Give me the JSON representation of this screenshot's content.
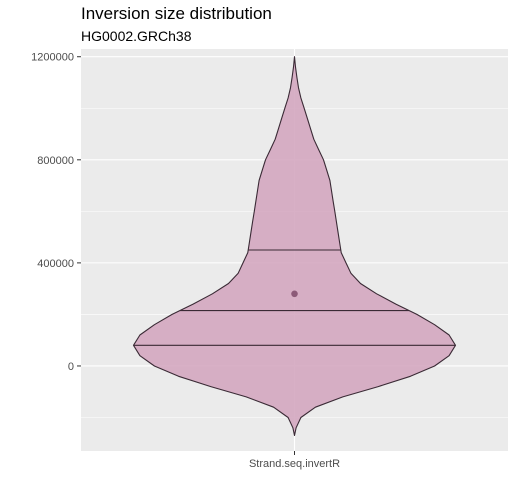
{
  "chart_data": {
    "type": "violin",
    "title": "Inversion size distribution",
    "subtitle": "HG0002.GRCh38",
    "xlabel": "",
    "ylabel": "",
    "categories": [
      "Strand.seq.invertR"
    ],
    "ylim": [
      -330000,
      1230000
    ],
    "y_ticks": [
      0,
      400000,
      800000,
      1200000
    ],
    "y_tick_labels": [
      "0",
      "400000",
      "800000",
      "1200000"
    ],
    "grid": true,
    "legend": "none",
    "fill_color": "#d4a7c0",
    "outline_color": "#3a2a35",
    "mean_color": "#8c5a78",
    "panel_color": "#ebebeb",
    "violin": {
      "y_min": -270000,
      "y_max": 1200000,
      "profile": [
        {
          "y": -270000,
          "w": 0.0
        },
        {
          "y": -240000,
          "w": 0.01
        },
        {
          "y": -200000,
          "w": 0.04
        },
        {
          "y": -160000,
          "w": 0.13
        },
        {
          "y": -120000,
          "w": 0.3
        },
        {
          "y": -80000,
          "w": 0.52
        },
        {
          "y": -40000,
          "w": 0.72
        },
        {
          "y": 0,
          "w": 0.87
        },
        {
          "y": 40000,
          "w": 0.96
        },
        {
          "y": 80000,
          "w": 1.0
        },
        {
          "y": 120000,
          "w": 0.96
        },
        {
          "y": 160000,
          "w": 0.87
        },
        {
          "y": 200000,
          "w": 0.76
        },
        {
          "y": 240000,
          "w": 0.63
        },
        {
          "y": 280000,
          "w": 0.51
        },
        {
          "y": 320000,
          "w": 0.41
        },
        {
          "y": 360000,
          "w": 0.35
        },
        {
          "y": 400000,
          "w": 0.32
        },
        {
          "y": 440000,
          "w": 0.29
        },
        {
          "y": 480000,
          "w": 0.28
        },
        {
          "y": 520000,
          "w": 0.27
        },
        {
          "y": 560000,
          "w": 0.26
        },
        {
          "y": 600000,
          "w": 0.25
        },
        {
          "y": 640000,
          "w": 0.24
        },
        {
          "y": 680000,
          "w": 0.23
        },
        {
          "y": 720000,
          "w": 0.22
        },
        {
          "y": 760000,
          "w": 0.2
        },
        {
          "y": 800000,
          "w": 0.18
        },
        {
          "y": 840000,
          "w": 0.15
        },
        {
          "y": 880000,
          "w": 0.12
        },
        {
          "y": 920000,
          "w": 0.1
        },
        {
          "y": 960000,
          "w": 0.08
        },
        {
          "y": 1000000,
          "w": 0.06
        },
        {
          "y": 1040000,
          "w": 0.04
        },
        {
          "y": 1080000,
          "w": 0.025
        },
        {
          "y": 1120000,
          "w": 0.015
        },
        {
          "y": 1160000,
          "w": 0.006
        },
        {
          "y": 1200000,
          "w": 0.0
        }
      ],
      "quantiles": [
        80000,
        215000,
        450000
      ],
      "mean": 280000
    }
  }
}
